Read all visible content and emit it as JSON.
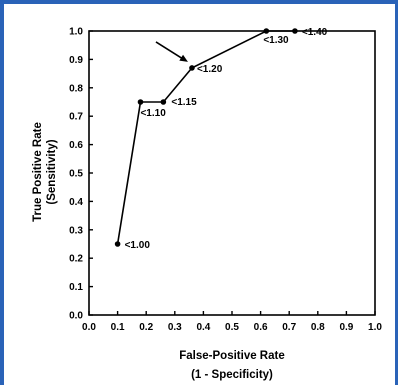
{
  "chart_data": {
    "type": "line",
    "xlabel": "False-Positive Rate",
    "xlabel_sub": "(1 - Specificity)",
    "ylabel": "True Positive Rate",
    "ylabel_sub": "(Sensitivity)",
    "xlim": [
      0,
      1
    ],
    "ylim": [
      0,
      1
    ],
    "x_ticks": [
      "0.0",
      "0.1",
      "0.2",
      "0.3",
      "0.4",
      "0.5",
      "0.6",
      "0.7",
      "0.8",
      "0.9",
      "1.0"
    ],
    "y_ticks": [
      "0.0",
      "0.1",
      "0.2",
      "0.3",
      "0.4",
      "0.5",
      "0.6",
      "0.7",
      "0.8",
      "0.9",
      "1.0"
    ],
    "grid": false,
    "points": [
      {
        "x": 0.1,
        "y": 0.25,
        "label": "<1.00"
      },
      {
        "x": 0.18,
        "y": 0.75,
        "label": "<1.10"
      },
      {
        "x": 0.26,
        "y": 0.75,
        "label": "<1.15"
      },
      {
        "x": 0.36,
        "y": 0.87,
        "label": "<1.20"
      },
      {
        "x": 0.62,
        "y": 1.0,
        "label": "<1.30"
      },
      {
        "x": 0.72,
        "y": 1.0,
        "label": "<1.40"
      }
    ],
    "annotation": {
      "type": "arrow",
      "points_to": "<1.20"
    }
  },
  "colors": {
    "frame": "#2a63b8",
    "line": "#000000"
  }
}
